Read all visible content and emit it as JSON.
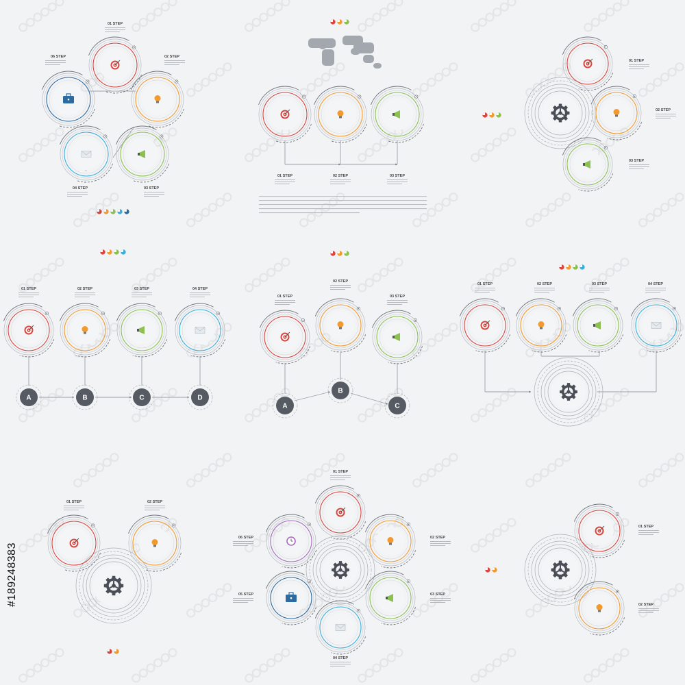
{
  "stock_id": "#189248383",
  "colors": {
    "red": "#d9453f",
    "orange": "#f29a2e",
    "green": "#8cc152",
    "blue": "#3bafda",
    "purple": "#a66bbe",
    "navy": "#2c6aa0",
    "gray": "#555a63",
    "dark": "#4a4f57",
    "line": "#9aa0a8",
    "watermark": "#d8dadd"
  },
  "steps": {
    "s01": "01 STEP",
    "s02": "02 STEP",
    "s03": "03 STEP",
    "s04": "04 STEP",
    "s05": "05 STEP",
    "s06": "06 STEP"
  },
  "letters": {
    "a": "A",
    "b": "B",
    "c": "C",
    "d": "D"
  },
  "icons": {
    "target": "target-icon",
    "bulb": "lightbulb-icon",
    "megaphone": "megaphone-icon",
    "mail": "envelope-icon",
    "case": "briefcase-icon",
    "gear": "gear-icon",
    "clock": "alarm-clock-icon",
    "map": "world-map-icon"
  }
}
